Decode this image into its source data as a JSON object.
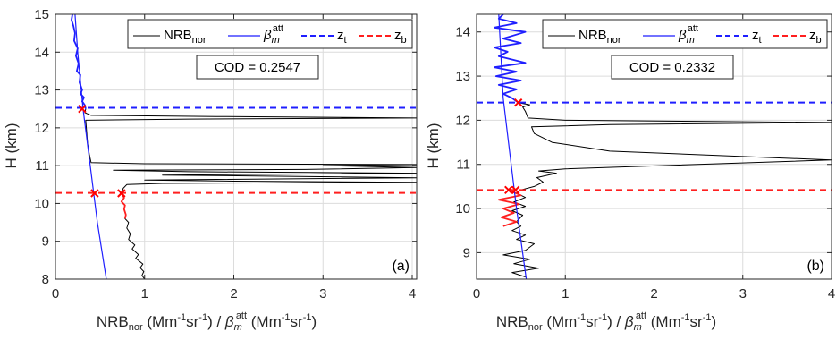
{
  "colors": {
    "nrb": "#000000",
    "beta": "#1f1fff",
    "zt": "#1f1fff",
    "zb": "#ff1f1f",
    "grid": "#dcdcdc",
    "axis": "#262626",
    "marker": "#ff0000"
  },
  "legend": {
    "nrb_main": "NRB",
    "nrb_sub": "nor",
    "beta_main": "β",
    "beta_sub": "m",
    "beta_sup": "att",
    "zt_main": "z",
    "zt_sub": "t",
    "zb_main": "z",
    "zb_sub": "b"
  },
  "xlabel": {
    "p1": "NRB",
    "p1_sub": "nor",
    "p2": " (Mm",
    "p2_sup": "-1",
    "p3": "sr",
    "p3_sup": "-1",
    "p4": ") / ",
    "beta": "β",
    "beta_sub": "m",
    "beta_sup": "att",
    "p5": " (Mm",
    "p5_sup": "-1",
    "p6": "sr",
    "p6_sup": "-1",
    "p7": ")"
  },
  "ylabel": "H (km)",
  "chart_data": [
    {
      "type": "line",
      "panel_label": "(a)",
      "annotation": "COD = 0.2547",
      "xlim": [
        0,
        4.05
      ],
      "ylim": [
        8,
        15
      ],
      "xticks": [
        0,
        1,
        2,
        3,
        4
      ],
      "yticks": [
        8,
        9,
        10,
        11,
        12,
        13,
        14,
        15
      ],
      "grid": true,
      "legend_position": "top-right",
      "zt": 12.53,
      "zb": 10.28,
      "markers": [
        [
          0.3,
          12.5
        ],
        [
          0.44,
          10.27
        ],
        [
          0.74,
          10.27
        ]
      ],
      "series": [
        {
          "name": "NRB_nor",
          "color_key": "nrb",
          "points": [
            [
              1.0,
              8.0
            ],
            [
              0.97,
              8.1
            ],
            [
              0.99,
              8.2
            ],
            [
              0.95,
              8.3
            ],
            [
              0.98,
              8.4
            ],
            [
              0.9,
              8.55
            ],
            [
              0.93,
              8.65
            ],
            [
              0.86,
              8.8
            ],
            [
              0.89,
              8.9
            ],
            [
              0.82,
              9.05
            ],
            [
              0.84,
              9.2
            ],
            [
              0.8,
              9.35
            ],
            [
              0.82,
              9.5
            ],
            [
              0.78,
              9.6
            ],
            [
              0.79,
              9.7
            ],
            [
              0.77,
              9.85
            ],
            [
              0.78,
              9.95
            ],
            [
              0.74,
              10.05
            ],
            [
              0.77,
              10.15
            ],
            [
              0.74,
              10.27
            ],
            [
              0.76,
              10.4
            ],
            [
              0.8,
              10.5
            ],
            [
              1.2,
              10.53
            ],
            [
              4.05,
              10.56
            ],
            [
              2.0,
              10.59
            ],
            [
              1.0,
              10.62
            ],
            [
              4.05,
              10.68
            ],
            [
              2.5,
              10.72
            ],
            [
              1.2,
              10.75
            ],
            [
              4.05,
              10.8
            ],
            [
              1.5,
              10.84
            ],
            [
              0.65,
              10.88
            ],
            [
              2.8,
              10.9
            ],
            [
              4.05,
              10.95
            ],
            [
              3.0,
              11.0
            ],
            [
              4.05,
              11.03
            ],
            [
              1.0,
              11.05
            ],
            [
              0.4,
              11.08
            ],
            [
              0.38,
              11.3
            ],
            [
              0.36,
              11.6
            ],
            [
              0.35,
              11.9
            ],
            [
              0.34,
              12.2
            ],
            [
              1.5,
              12.23
            ],
            [
              4.05,
              12.26
            ],
            [
              1.8,
              12.3
            ],
            [
              0.4,
              12.33
            ],
            [
              0.33,
              12.4
            ],
            [
              0.34,
              12.5
            ]
          ]
        },
        {
          "name": "NRB_nor (bottom)",
          "color_key": "zb",
          "points": [
            [
              0.78,
              9.6
            ],
            [
              0.79,
              9.7
            ],
            [
              0.77,
              9.85
            ],
            [
              0.78,
              9.95
            ],
            [
              0.74,
              10.05
            ],
            [
              0.77,
              10.15
            ],
            [
              0.74,
              10.27
            ]
          ]
        },
        {
          "name": "NRB_nor (top)",
          "color_key": "beta",
          "points": [
            [
              0.34,
              12.5
            ],
            [
              0.33,
              12.6
            ],
            [
              0.3,
              12.7
            ],
            [
              0.32,
              12.8
            ],
            [
              0.28,
              12.9
            ],
            [
              0.3,
              13.0
            ],
            [
              0.27,
              13.2
            ],
            [
              0.28,
              13.4
            ],
            [
              0.24,
              13.5
            ],
            [
              0.26,
              13.7
            ],
            [
              0.23,
              13.9
            ],
            [
              0.25,
              14.1
            ],
            [
              0.21,
              14.3
            ],
            [
              0.22,
              14.5
            ],
            [
              0.2,
              14.7
            ],
            [
              0.18,
              14.85
            ],
            [
              0.19,
              15.0
            ]
          ]
        },
        {
          "name": "beta_m_att",
          "color_key": "beta",
          "points": [
            [
              0.57,
              8.0
            ],
            [
              0.47,
              9.5
            ],
            [
              0.39,
              11.0
            ],
            [
              0.31,
              12.5
            ],
            [
              0.25,
              14.0
            ],
            [
              0.22,
              15.0
            ]
          ]
        }
      ]
    },
    {
      "type": "line",
      "panel_label": "(b)",
      "annotation": "COD = 0.2332",
      "xlim": [
        0,
        4
      ],
      "ylim": [
        8.4,
        14.4
      ],
      "xticks": [
        0,
        1,
        2,
        3,
        4
      ],
      "yticks": [
        9,
        10,
        11,
        12,
        13,
        14
      ],
      "grid": true,
      "legend_position": "top-right",
      "zt": 12.4,
      "zb": 10.42,
      "markers": [
        [
          0.47,
          12.4
        ],
        [
          0.36,
          10.42
        ],
        [
          0.44,
          10.42
        ]
      ],
      "series": [
        {
          "name": "NRB_nor",
          "color_key": "nrb",
          "points": [
            [
              0.55,
              8.45
            ],
            [
              0.4,
              8.55
            ],
            [
              0.7,
              8.65
            ],
            [
              0.42,
              8.75
            ],
            [
              0.6,
              8.85
            ],
            [
              0.3,
              8.95
            ],
            [
              0.55,
              9.05
            ],
            [
              0.65,
              9.2
            ],
            [
              0.45,
              9.3
            ],
            [
              0.55,
              9.4
            ],
            [
              0.4,
              9.5
            ],
            [
              0.5,
              9.6
            ],
            [
              0.45,
              9.7
            ],
            [
              0.52,
              9.85
            ],
            [
              0.4,
              9.95
            ],
            [
              0.55,
              10.05
            ],
            [
              0.42,
              10.15
            ],
            [
              0.55,
              10.25
            ],
            [
              0.45,
              10.35
            ],
            [
              0.5,
              10.42
            ],
            [
              0.65,
              10.5
            ],
            [
              0.75,
              10.6
            ],
            [
              0.68,
              10.7
            ],
            [
              0.9,
              10.8
            ],
            [
              0.7,
              10.85
            ],
            [
              1.0,
              10.9
            ],
            [
              4.0,
              11.1
            ],
            [
              1.5,
              11.3
            ],
            [
              0.85,
              11.5
            ],
            [
              0.65,
              11.7
            ],
            [
              0.62,
              11.85
            ],
            [
              1.5,
              11.9
            ],
            [
              4.0,
              11.95
            ],
            [
              1.0,
              12.0
            ],
            [
              0.58,
              12.05
            ],
            [
              0.55,
              12.2
            ],
            [
              0.52,
              12.3
            ],
            [
              0.6,
              12.35
            ],
            [
              0.47,
              12.4
            ]
          ]
        },
        {
          "name": "NRB_nor (bottom)",
          "color_key": "zb",
          "points": [
            [
              0.3,
              9.6
            ],
            [
              0.45,
              9.7
            ],
            [
              0.28,
              9.8
            ],
            [
              0.42,
              9.9
            ],
            [
              0.3,
              10.0
            ],
            [
              0.48,
              10.1
            ],
            [
              0.25,
              10.2
            ],
            [
              0.5,
              10.3
            ],
            [
              0.36,
              10.42
            ],
            [
              0.44,
              10.42
            ]
          ]
        },
        {
          "name": "NRB_nor (top)",
          "color_key": "beta",
          "points": [
            [
              0.47,
              12.4
            ],
            [
              0.4,
              12.5
            ],
            [
              0.3,
              12.6
            ],
            [
              0.45,
              12.7
            ],
            [
              0.25,
              12.8
            ],
            [
              0.5,
              12.9
            ],
            [
              0.22,
              13.0
            ],
            [
              0.45,
              13.1
            ],
            [
              0.2,
              13.2
            ],
            [
              0.55,
              13.3
            ],
            [
              0.25,
              13.45
            ],
            [
              0.35,
              13.55
            ],
            [
              0.2,
              13.65
            ],
            [
              0.5,
              13.75
            ],
            [
              0.3,
              13.85
            ],
            [
              0.55,
              14.0
            ],
            [
              0.2,
              14.1
            ],
            [
              0.45,
              14.2
            ],
            [
              0.25,
              14.3
            ],
            [
              0.3,
              14.4
            ]
          ]
        },
        {
          "name": "beta_m_att",
          "color_key": "beta",
          "points": [
            [
              0.56,
              8.4
            ],
            [
              0.45,
              10.0
            ],
            [
              0.36,
              11.5
            ],
            [
              0.3,
              12.5
            ],
            [
              0.25,
              14.4
            ]
          ]
        }
      ]
    }
  ]
}
